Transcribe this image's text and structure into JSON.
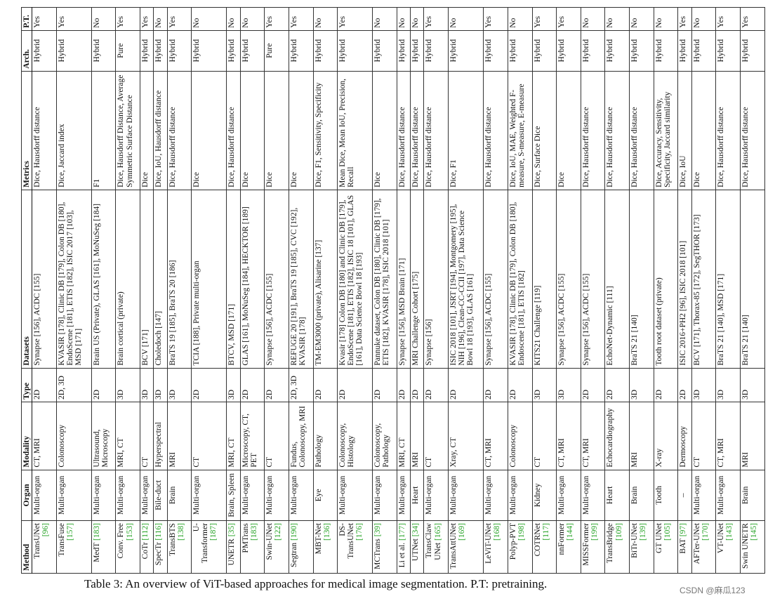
{
  "table": {
    "headers": [
      "Method",
      "Organ",
      "Modality",
      "Type",
      "Datasets",
      "Metrics",
      "Arch.",
      "P.T."
    ],
    "rows": [
      {
        "method": "TransUNet",
        "method_ref": "[96]",
        "organ": "Multi-organ",
        "modality": "CT, MRI",
        "type": "2D",
        "datasets": "Synapse [156], ACDC [155]",
        "metrics": "Dice, Hausdorff distance",
        "arch": "Hybrid",
        "pt": "Yes"
      },
      {
        "method": "TransFuse",
        "method_ref": "[157]",
        "organ": "Multi-organ",
        "modality": "Colonoscopy",
        "type": "2D, 3D",
        "datasets": "KVASIR [178], Clinic DB [179], Colon DB [180], EndoScene [181], ETIS [182], ISIC 2017 [103], MSD [171]",
        "metrics": "Dice, Jaccard index",
        "arch": "Hybrid",
        "pt": "Yes"
      },
      {
        "method": "MedT",
        "method_ref": "[183]",
        "organ": "Multi-organ",
        "modality": "Ultrasound, Microscopy",
        "type": "2D",
        "datasets": "Brain US (Private), GLAS [161], MoNuSeg [184]",
        "metrics": "F1",
        "arch": "Hybrid",
        "pt": "No"
      },
      {
        "method": "Conv. Free",
        "method_ref": "[153]",
        "organ": "Multi-organ",
        "modality": "MRI, CT",
        "type": "3D",
        "datasets": "Brain cortical (private)",
        "metrics": "Dice, Hausdorff Distance, Average Symmetric Surface Distance",
        "arch": "Pure",
        "pt": "Yes"
      },
      {
        "method": "CoTr",
        "method_ref": "[112]",
        "organ": "Multi-organ",
        "modality": "CT",
        "type": "3D",
        "datasets": "BCV [171]",
        "metrics": "Dice",
        "arch": "Hybrid",
        "pt": "Yes"
      },
      {
        "method": "SpecTr",
        "method_ref": "[116]",
        "organ": "Bile-duct",
        "modality": "Hyperspectral",
        "type": "3D",
        "datasets": "Choledoch [147]",
        "metrics": "Dice, IoU, Hausdorff distance",
        "arch": "Hybrid",
        "pt": "No"
      },
      {
        "method": "TransBTS",
        "method_ref": "[138]",
        "organ": "Brain",
        "modality": "MRI",
        "type": "3D",
        "datasets": "BraTS 19 [185], BraTS 20 [186]",
        "metrics": "Dice, Hausdorff distance",
        "arch": "Hybrid",
        "pt": "Yes"
      },
      {
        "method": "U-Transformer",
        "method_ref": "[187]",
        "organ": "Multi-organ",
        "modality": "CT",
        "type": "2D",
        "datasets": "TCIA [188], Private multi-organ",
        "metrics": "Dice",
        "arch": "Hybrid",
        "pt": "No"
      },
      {
        "method": "UNETR",
        "method_ref": "[35]",
        "organ": "Brain, Spleen",
        "modality": "MRI, CT",
        "type": "3D",
        "datasets": "BTCV, MSD [171]",
        "metrics": "Dice, Hausdorff distance",
        "arch": "Hybrid",
        "pt": "No"
      },
      {
        "method": "PMTrans",
        "method_ref": "[183]",
        "organ": "Multi-organ",
        "modality": "Microscopy, CT, PET",
        "type": "2D",
        "datasets": "GLAS [161], MoNuSeg [184], HECKTOR [189]",
        "metrics": "Dice",
        "arch": "Hybrid",
        "pt": "No"
      },
      {
        "method": "Swin-UNet",
        "method_ref": "[122]",
        "organ": "Multi-organ",
        "modality": "CT",
        "type": "2D",
        "datasets": "Synapse [156], ACDC [155]",
        "metrics": "Dice",
        "arch": "Pure",
        "pt": "Yes"
      },
      {
        "method": "Segtran",
        "method_ref": "[190]",
        "organ": "Multi-organ",
        "modality": "Fundus, Colonoscopy, MRI",
        "type": "2D, 3D",
        "datasets": "REFUGE 20 [191], BraTS 19 [185], CVC [192], KVASIR [178]",
        "metrics": "Dice",
        "arch": "Hybrid",
        "pt": "Yes"
      },
      {
        "method": "MBT-Net",
        "method_ref": "[136]",
        "organ": "Eye",
        "modality": "Pathology",
        "type": "2D",
        "datasets": "TM-EM3000 (private), Alisarine [137]",
        "metrics": "Dice, F1, Sensitivity, Specificity",
        "arch": "Hybrid",
        "pt": "No"
      },
      {
        "method": "DS-TransUNet",
        "method_ref": "[176]",
        "organ": "Multi-organ",
        "modality": "Colonoscopy, Histology",
        "type": "2D",
        "datasets": "Kvasir [178] Colon DB [180] and Clinic DB [179], EndoScene [181], ETIS [182], ISIC 18 [101], GLAS [161], Data Science Bowl 18 [193]",
        "metrics": "Mean Dice, Mean IoU, Precision, Recall",
        "arch": "Hybrid",
        "pt": "Yes"
      },
      {
        "method": "MCTrans",
        "method_ref": "[39]",
        "organ": "Multi-organ",
        "modality": "Colonoscopy, Pathology",
        "type": "2D",
        "datasets": "Pannuke dataset, Colon DB [180], Clinic DB [179], ETIS [182], KVASIR [178], ISIC 2018 [101]",
        "metrics": "Dice",
        "arch": "Hybrid",
        "pt": "No"
      },
      {
        "method": "Li et al.",
        "method_ref": "[177]",
        "organ": "Multi-organ",
        "modality": "MRI, CT",
        "type": "2D",
        "datasets": "Synapse [156], MSD Brain [171]",
        "metrics": "Dice, Hausdorff distance",
        "arch": "Hybrid",
        "pt": "No"
      },
      {
        "method": "UTNet",
        "method_ref": "[34]",
        "organ": "Heart",
        "modality": "MRI",
        "type": "2D",
        "datasets": "MRI Challenge Cohort [175]",
        "metrics": "Dice, Hausdorff distance",
        "arch": "Hybrid",
        "pt": "No"
      },
      {
        "method": "TransClaw UNet",
        "method_ref": "[165]",
        "organ": "Multi-organ",
        "modality": "CT",
        "type": "2D",
        "datasets": "Synapse [156]",
        "metrics": "Dice, Hausdorff distance",
        "arch": "Hybrid",
        "pt": "Yes"
      },
      {
        "method": "TransAttUNet",
        "method_ref": "[169]",
        "organ": "Multi-organ",
        "modality": "Xray, CT",
        "type": "2D",
        "datasets": "ISIC 2018 [101], JSRT [194], Montgomery [195], NIH [196], Clean-CC-CCII [197], Data Science Bowl 18 [193], GLAS [161]",
        "metrics": "Dice, F1",
        "arch": "Hybrid",
        "pt": "No"
      },
      {
        "method": "LeViT-UNet",
        "method_ref": "[168]",
        "organ": "Multi-organ",
        "modality": "CT, MRI",
        "type": "2D",
        "datasets": "Synapse [156], ACDC [155]",
        "metrics": "Dice, Hausdorff distance",
        "arch": "Hybrid",
        "pt": "Yes"
      },
      {
        "method": "Polyp-PVT",
        "method_ref": "[198]",
        "organ": "Multi-organ",
        "modality": "Colonoscopy",
        "type": "2D",
        "datasets": "KVASIR [178], Clinic DB [179], Colon DB [180], Endoscene [181], ETIS [182]",
        "metrics": "Dice, IoU, MAE, Weighted F-measure, S-measure, E-measure",
        "arch": "Hybrid",
        "pt": "No"
      },
      {
        "method": "COTRNet",
        "method_ref": "[117]",
        "organ": "Kidney",
        "modality": "CT",
        "type": "3D",
        "datasets": "KITS21 Challenge [119]",
        "metrics": "Dice, Surface Dice",
        "arch": "Hybrid",
        "pt": "Yes"
      },
      {
        "method": "nnFormer",
        "method_ref": "[144]",
        "organ": "Multi-organ",
        "modality": "CT, MRI",
        "type": "3D",
        "datasets": "Synapse [156], ACDC [155]",
        "metrics": "Dice",
        "arch": "Hybrid",
        "pt": "Yes"
      },
      {
        "method": "MISSFormer",
        "method_ref": "[199]",
        "organ": "Multi-organ",
        "modality": "CT, MRI",
        "type": "2D",
        "datasets": "Synapse [156], ACDC [155]",
        "metrics": "Dice, Hausdorff distance",
        "arch": "Hybrid",
        "pt": "No"
      },
      {
        "method": "TransBridge",
        "method_ref": "[109]",
        "organ": "Heart",
        "modality": "Echocardiography",
        "type": "2D",
        "datasets": "EchoNet-Dynamic [111]",
        "metrics": "Dice, Hausdorff distance",
        "arch": "Hybrid",
        "pt": "No"
      },
      {
        "method": "BiTr-UNet",
        "method_ref": "[139]",
        "organ": "Brain",
        "modality": "MRI",
        "type": "3D",
        "datasets": "BraTS 21 [140]",
        "metrics": "Dice, Hausdorff distance",
        "arch": "Hybrid",
        "pt": "No"
      },
      {
        "method": "GT UNet",
        "method_ref": "[105]",
        "organ": "Tooth",
        "modality": "X-ray",
        "type": "2D",
        "datasets": "Tooth root dataset (private)",
        "metrics": "Dice, Accuracy, Sensitivity, Specificity, Jaccard similarity",
        "arch": "Hybrid",
        "pt": "No"
      },
      {
        "method": "BAT",
        "method_ref": "[97]",
        "organ": "–",
        "modality": "Dermoscopy",
        "type": "2D",
        "datasets": "ISIC 2016+PH2 [96], ISIC 2018 [101]",
        "metrics": "Dice, IoU",
        "arch": "Hybrid",
        "pt": "Yes"
      },
      {
        "method": "AFTer-UNet",
        "method_ref": "[170]",
        "organ": "Multi-organ",
        "modality": "CT",
        "type": "3D",
        "datasets": "BCV [171], Thorax-85 [172], SegTHOR [173]",
        "metrics": "Dice",
        "arch": "Hybrid",
        "pt": "No"
      },
      {
        "method": "VT-UNet",
        "method_ref": "[143]",
        "organ": "Multi-organ",
        "modality": "CT, MRI",
        "type": "3D",
        "datasets": "BraTS 21 [140], MSD [171]",
        "metrics": "Dice, Hausdorff distance",
        "arch": "Hybrid",
        "pt": "Yes"
      },
      {
        "method": "Swin UNETR",
        "method_ref": "[145]",
        "organ": "Brain",
        "modality": "MRI",
        "type": "3D",
        "datasets": "BraTS 21 [140]",
        "metrics": "Dice, Hausdorff distance",
        "arch": "Hybrid",
        "pt": "Yes"
      }
    ]
  },
  "caption": "Table 3: An overview of ViT-based approaches for medical image segmentation. P.T: pretraining.",
  "watermark": "CSDN @麻瓜123",
  "colors": {
    "reference_link": "#20a020"
  }
}
